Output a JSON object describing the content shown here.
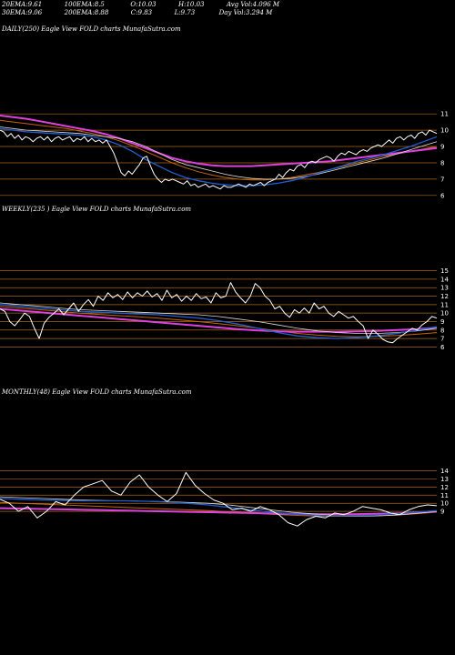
{
  "header": {
    "row1": [
      {
        "label": "20EMA:",
        "value": "9.61"
      },
      {
        "label": "100EMA:",
        "value": "8.5"
      },
      {
        "label": "O:",
        "value": "10.03"
      },
      {
        "label": "H:",
        "value": "10.03"
      },
      {
        "label": "Avg Vol:",
        "value": "4.096",
        "suffix": "M"
      }
    ],
    "row2": [
      {
        "label": "30EMA:",
        "value": "9.06"
      },
      {
        "label": "200EMA:",
        "value": "8.88"
      },
      {
        "label": "C:",
        "value": "9.83"
      },
      {
        "label": "L:",
        "value": "9.73"
      },
      {
        "label": "Day Vol:",
        "value": "3.294",
        "suffix": "M"
      }
    ]
  },
  "panels": [
    {
      "title": "DAILY(250) Eagle  View  FOLD charts MunafaSutra.com"
    },
    {
      "title": "WEEKLY(235           ) Eagle  View  FOLD charts MunafaSutra.com"
    },
    {
      "title": "MONTHLY(48) Eagle  View  FOLD charts MunafaSutra.com"
    }
  ],
  "chart_data": [
    {
      "type": "line",
      "name": "daily",
      "ylim": [
        5.6,
        11.4
      ],
      "yticks": [
        "11",
        "10",
        "9",
        "8",
        "7",
        "6"
      ],
      "yvals": [
        11,
        10,
        9,
        8,
        7,
        6
      ],
      "x_count": 120,
      "price": [
        10.0,
        9.9,
        9.6,
        9.8,
        9.5,
        9.7,
        9.4,
        9.6,
        9.5,
        9.3,
        9.5,
        9.6,
        9.4,
        9.6,
        9.3,
        9.5,
        9.6,
        9.4,
        9.5,
        9.6,
        9.3,
        9.5,
        9.4,
        9.6,
        9.3,
        9.5,
        9.3,
        9.4,
        9.2,
        9.4,
        9.0,
        8.6,
        8.0,
        7.4,
        7.2,
        7.5,
        7.3,
        7.6,
        7.9,
        8.3,
        8.4,
        7.8,
        7.3,
        7.0,
        6.8,
        7.0,
        6.9,
        7.0,
        6.9,
        6.8,
        6.7,
        6.9,
        6.6,
        6.7,
        6.5,
        6.6,
        6.7,
        6.5,
        6.6,
        6.5,
        6.4,
        6.6,
        6.5,
        6.5,
        6.6,
        6.7,
        6.6,
        6.5,
        6.7,
        6.6,
        6.7,
        6.8,
        6.6,
        6.8,
        6.9,
        7.0,
        7.3,
        7.1,
        7.4,
        7.6,
        7.5,
        7.8,
        7.9,
        7.7,
        8.0,
        8.1,
        8.0,
        8.2,
        8.3,
        8.4,
        8.3,
        8.1,
        8.4,
        8.6,
        8.5,
        8.7,
        8.6,
        8.5,
        8.7,
        8.8,
        8.7,
        8.9,
        9.0,
        9.1,
        9.0,
        9.2,
        9.4,
        9.2,
        9.5,
        9.6,
        9.4,
        9.6,
        9.7,
        9.5,
        9.8,
        9.9,
        9.7,
        10.0,
        9.9,
        9.8
      ],
      "ema_white": [
        10.2,
        10.1,
        10.0,
        9.95,
        9.9,
        9.85,
        9.8,
        9.7,
        9.6,
        9.5,
        9.3,
        9.0,
        8.6,
        8.2,
        7.9,
        7.7,
        7.5,
        7.3,
        7.15,
        7.05,
        7.0,
        7.0,
        7.05,
        7.15,
        7.3,
        7.5,
        7.7,
        7.9,
        8.1,
        8.3,
        8.55,
        8.8,
        9.05,
        9.3
      ],
      "ema_blue": [
        10.1,
        10.0,
        9.9,
        9.85,
        9.8,
        9.75,
        9.7,
        9.6,
        9.4,
        9.1,
        8.7,
        8.2,
        7.8,
        7.4,
        7.1,
        6.9,
        6.75,
        6.65,
        6.6,
        6.6,
        6.65,
        6.75,
        6.9,
        7.1,
        7.35,
        7.6,
        7.85,
        8.1,
        8.3,
        8.5,
        8.75,
        9.0,
        9.3,
        9.6
      ],
      "ema_magenta": [
        10.9,
        10.8,
        10.7,
        10.55,
        10.4,
        10.25,
        10.1,
        9.95,
        9.75,
        9.5,
        9.2,
        8.9,
        8.6,
        8.3,
        8.1,
        7.95,
        7.85,
        7.8,
        7.8,
        7.8,
        7.85,
        7.9,
        7.95,
        8.0,
        8.05,
        8.1,
        8.2,
        8.3,
        8.4,
        8.5,
        8.6,
        8.7,
        8.8,
        8.9
      ],
      "ema_orange": [
        10.6,
        10.5,
        10.4,
        10.3,
        10.2,
        10.1,
        9.95,
        9.8,
        9.6,
        9.35,
        9.05,
        8.7,
        8.35,
        8.0,
        7.7,
        7.45,
        7.25,
        7.1,
        7.0,
        6.95,
        6.95,
        7.0,
        7.1,
        7.25,
        7.4,
        7.6,
        7.8,
        8.0,
        8.2,
        8.4,
        8.55,
        8.7,
        8.85,
        9.0
      ]
    },
    {
      "type": "line",
      "name": "weekly",
      "ylim": [
        5.4,
        15.6
      ],
      "yticks": [
        "15",
        "14",
        "13",
        "12",
        "11",
        "10",
        "9",
        "8",
        "7",
        "6"
      ],
      "yvals": [
        15,
        14,
        13,
        12,
        11,
        10,
        9,
        8,
        7,
        6
      ],
      "x_count": 90,
      "price": [
        10.5,
        10.2,
        9.0,
        8.5,
        9.2,
        10.0,
        9.6,
        8.2,
        7.0,
        8.8,
        9.5,
        10.0,
        10.5,
        9.8,
        10.5,
        11.2,
        10.2,
        11.0,
        11.6,
        10.8,
        12.0,
        11.5,
        12.4,
        11.8,
        12.2,
        11.6,
        12.5,
        11.8,
        12.4,
        12.0,
        12.6,
        11.9,
        12.3,
        11.5,
        12.7,
        11.8,
        12.2,
        11.4,
        12.0,
        11.5,
        12.3,
        11.7,
        11.9,
        11.2,
        12.4,
        11.8,
        12.0,
        13.6,
        12.5,
        11.8,
        11.2,
        12.0,
        13.5,
        13.0,
        12.0,
        11.5,
        10.5,
        10.8,
        10.0,
        9.5,
        10.4,
        10.0,
        10.6,
        10.0,
        11.2,
        10.5,
        10.8,
        10.0,
        9.6,
        10.2,
        9.8,
        9.4,
        9.6,
        9.0,
        8.5,
        7.0,
        8.0,
        7.5,
        6.9,
        6.6,
        6.5,
        7.0,
        7.4,
        7.8,
        8.2,
        8.0,
        8.6,
        9.0,
        9.6,
        9.4
      ],
      "ema_white": [
        11.2,
        11.0,
        10.8,
        10.6,
        10.4,
        10.3,
        10.2,
        10.1,
        10.0,
        9.9,
        9.8,
        9.6,
        9.3,
        9.0,
        8.6,
        8.2,
        7.9,
        7.7,
        7.6,
        7.6,
        7.7,
        7.9,
        8.2
      ],
      "ema_blue": [
        11.0,
        10.8,
        10.6,
        10.4,
        10.2,
        10.1,
        10.0,
        9.9,
        9.8,
        9.6,
        9.4,
        9.1,
        8.7,
        8.2,
        7.7,
        7.3,
        7.1,
        7.0,
        7.1,
        7.3,
        7.6,
        8.0,
        8.4
      ],
      "ema_magenta": [
        10.5,
        10.3,
        10.1,
        9.9,
        9.7,
        9.5,
        9.3,
        9.1,
        8.9,
        8.7,
        8.5,
        8.3,
        8.1,
        7.95,
        7.85,
        7.8,
        7.8,
        7.8,
        7.85,
        7.9,
        8.0,
        8.1,
        8.3
      ],
      "ema_orange": [
        10.8,
        10.6,
        10.4,
        10.2,
        10.0,
        9.85,
        9.7,
        9.55,
        9.4,
        9.2,
        9.0,
        8.75,
        8.5,
        8.2,
        7.9,
        7.6,
        7.4,
        7.25,
        7.2,
        7.25,
        7.35,
        7.5,
        7.7
      ]
    },
    {
      "type": "line",
      "name": "monthly",
      "ylim": [
        7.0,
        15.4
      ],
      "yticks": [
        "14",
        "13",
        "12",
        "11",
        "10",
        "9"
      ],
      "yvals": [
        14,
        13,
        12,
        11,
        10,
        9
      ],
      "x_count": 48,
      "price": [
        10.5,
        10.0,
        9.0,
        9.6,
        8.2,
        9.0,
        10.2,
        9.8,
        11.0,
        12.0,
        12.4,
        12.8,
        11.5,
        11.0,
        12.6,
        13.5,
        12.0,
        11.0,
        10.2,
        11.2,
        13.8,
        12.2,
        11.2,
        10.4,
        10.0,
        9.2,
        9.4,
        9.0,
        9.6,
        9.2,
        8.6,
        7.6,
        7.2,
        8.0,
        8.4,
        8.2,
        8.8,
        8.6,
        9.0,
        9.6,
        9.4,
        9.2,
        8.8,
        8.6,
        9.2,
        9.6,
        9.8,
        9.7
      ],
      "ema_white": [
        10.8,
        10.7,
        10.6,
        10.5,
        10.4,
        10.35,
        10.3,
        10.25,
        10.2,
        10.1,
        10.0,
        9.8,
        9.5,
        9.2,
        8.9,
        8.7,
        8.55,
        8.45,
        8.45,
        8.55,
        8.75,
        9.0
      ],
      "ema_blue": [
        10.6,
        10.5,
        10.4,
        10.35,
        10.3,
        10.3,
        10.3,
        10.25,
        10.15,
        10.0,
        9.8,
        9.5,
        9.2,
        8.9,
        8.7,
        8.55,
        8.5,
        8.5,
        8.55,
        8.7,
        8.9,
        9.1
      ],
      "ema_magenta": [
        9.4,
        9.35,
        9.3,
        9.25,
        9.2,
        9.15,
        9.1,
        9.05,
        9.0,
        8.95,
        8.9,
        8.85,
        8.8,
        8.75,
        8.7,
        8.65,
        8.65,
        8.65,
        8.7,
        8.75,
        8.85,
        9.0
      ],
      "ema_orange": [
        10.1,
        10.0,
        9.9,
        9.8,
        9.7,
        9.6,
        9.5,
        9.4,
        9.3,
        9.2,
        9.1,
        8.95,
        8.8,
        8.65,
        8.55,
        8.45,
        8.4,
        8.4,
        8.45,
        8.55,
        8.7,
        8.9
      ]
    }
  ],
  "colors": {
    "price": "#ffffff",
    "ema_white": "#dcdcdc",
    "ema_blue": "#1f5fd6",
    "ema_magenta": "#e040e0",
    "ema_orange": "#c86400",
    "grid": "#c8781e"
  }
}
